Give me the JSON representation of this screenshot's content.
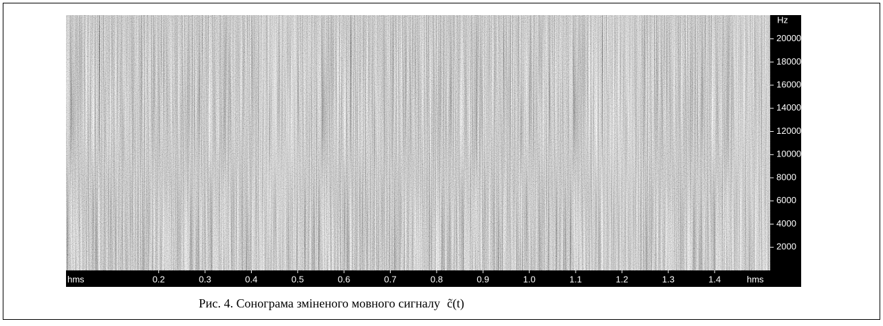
{
  "chart_data": {
    "type": "spectrogram",
    "x_unit": "hms",
    "y_unit": "Hz",
    "xlim": [
      0,
      1.52
    ],
    "xticks": [
      0.2,
      0.3,
      0.4,
      0.5,
      0.6,
      0.7,
      0.8,
      0.9,
      {
        "value": 1,
        "label": "1.0"
      },
      1.1,
      1.2,
      1.3,
      1.4
    ],
    "ylim": [
      0,
      22050
    ],
    "yticks": [
      2000,
      4000,
      6000,
      8000,
      10000,
      12000,
      14000,
      16000,
      18000,
      20000
    ]
  },
  "caption": {
    "text": "Рис. 4. Сонограма зміненого мовного сигналу",
    "formula": "c̃(t)"
  }
}
